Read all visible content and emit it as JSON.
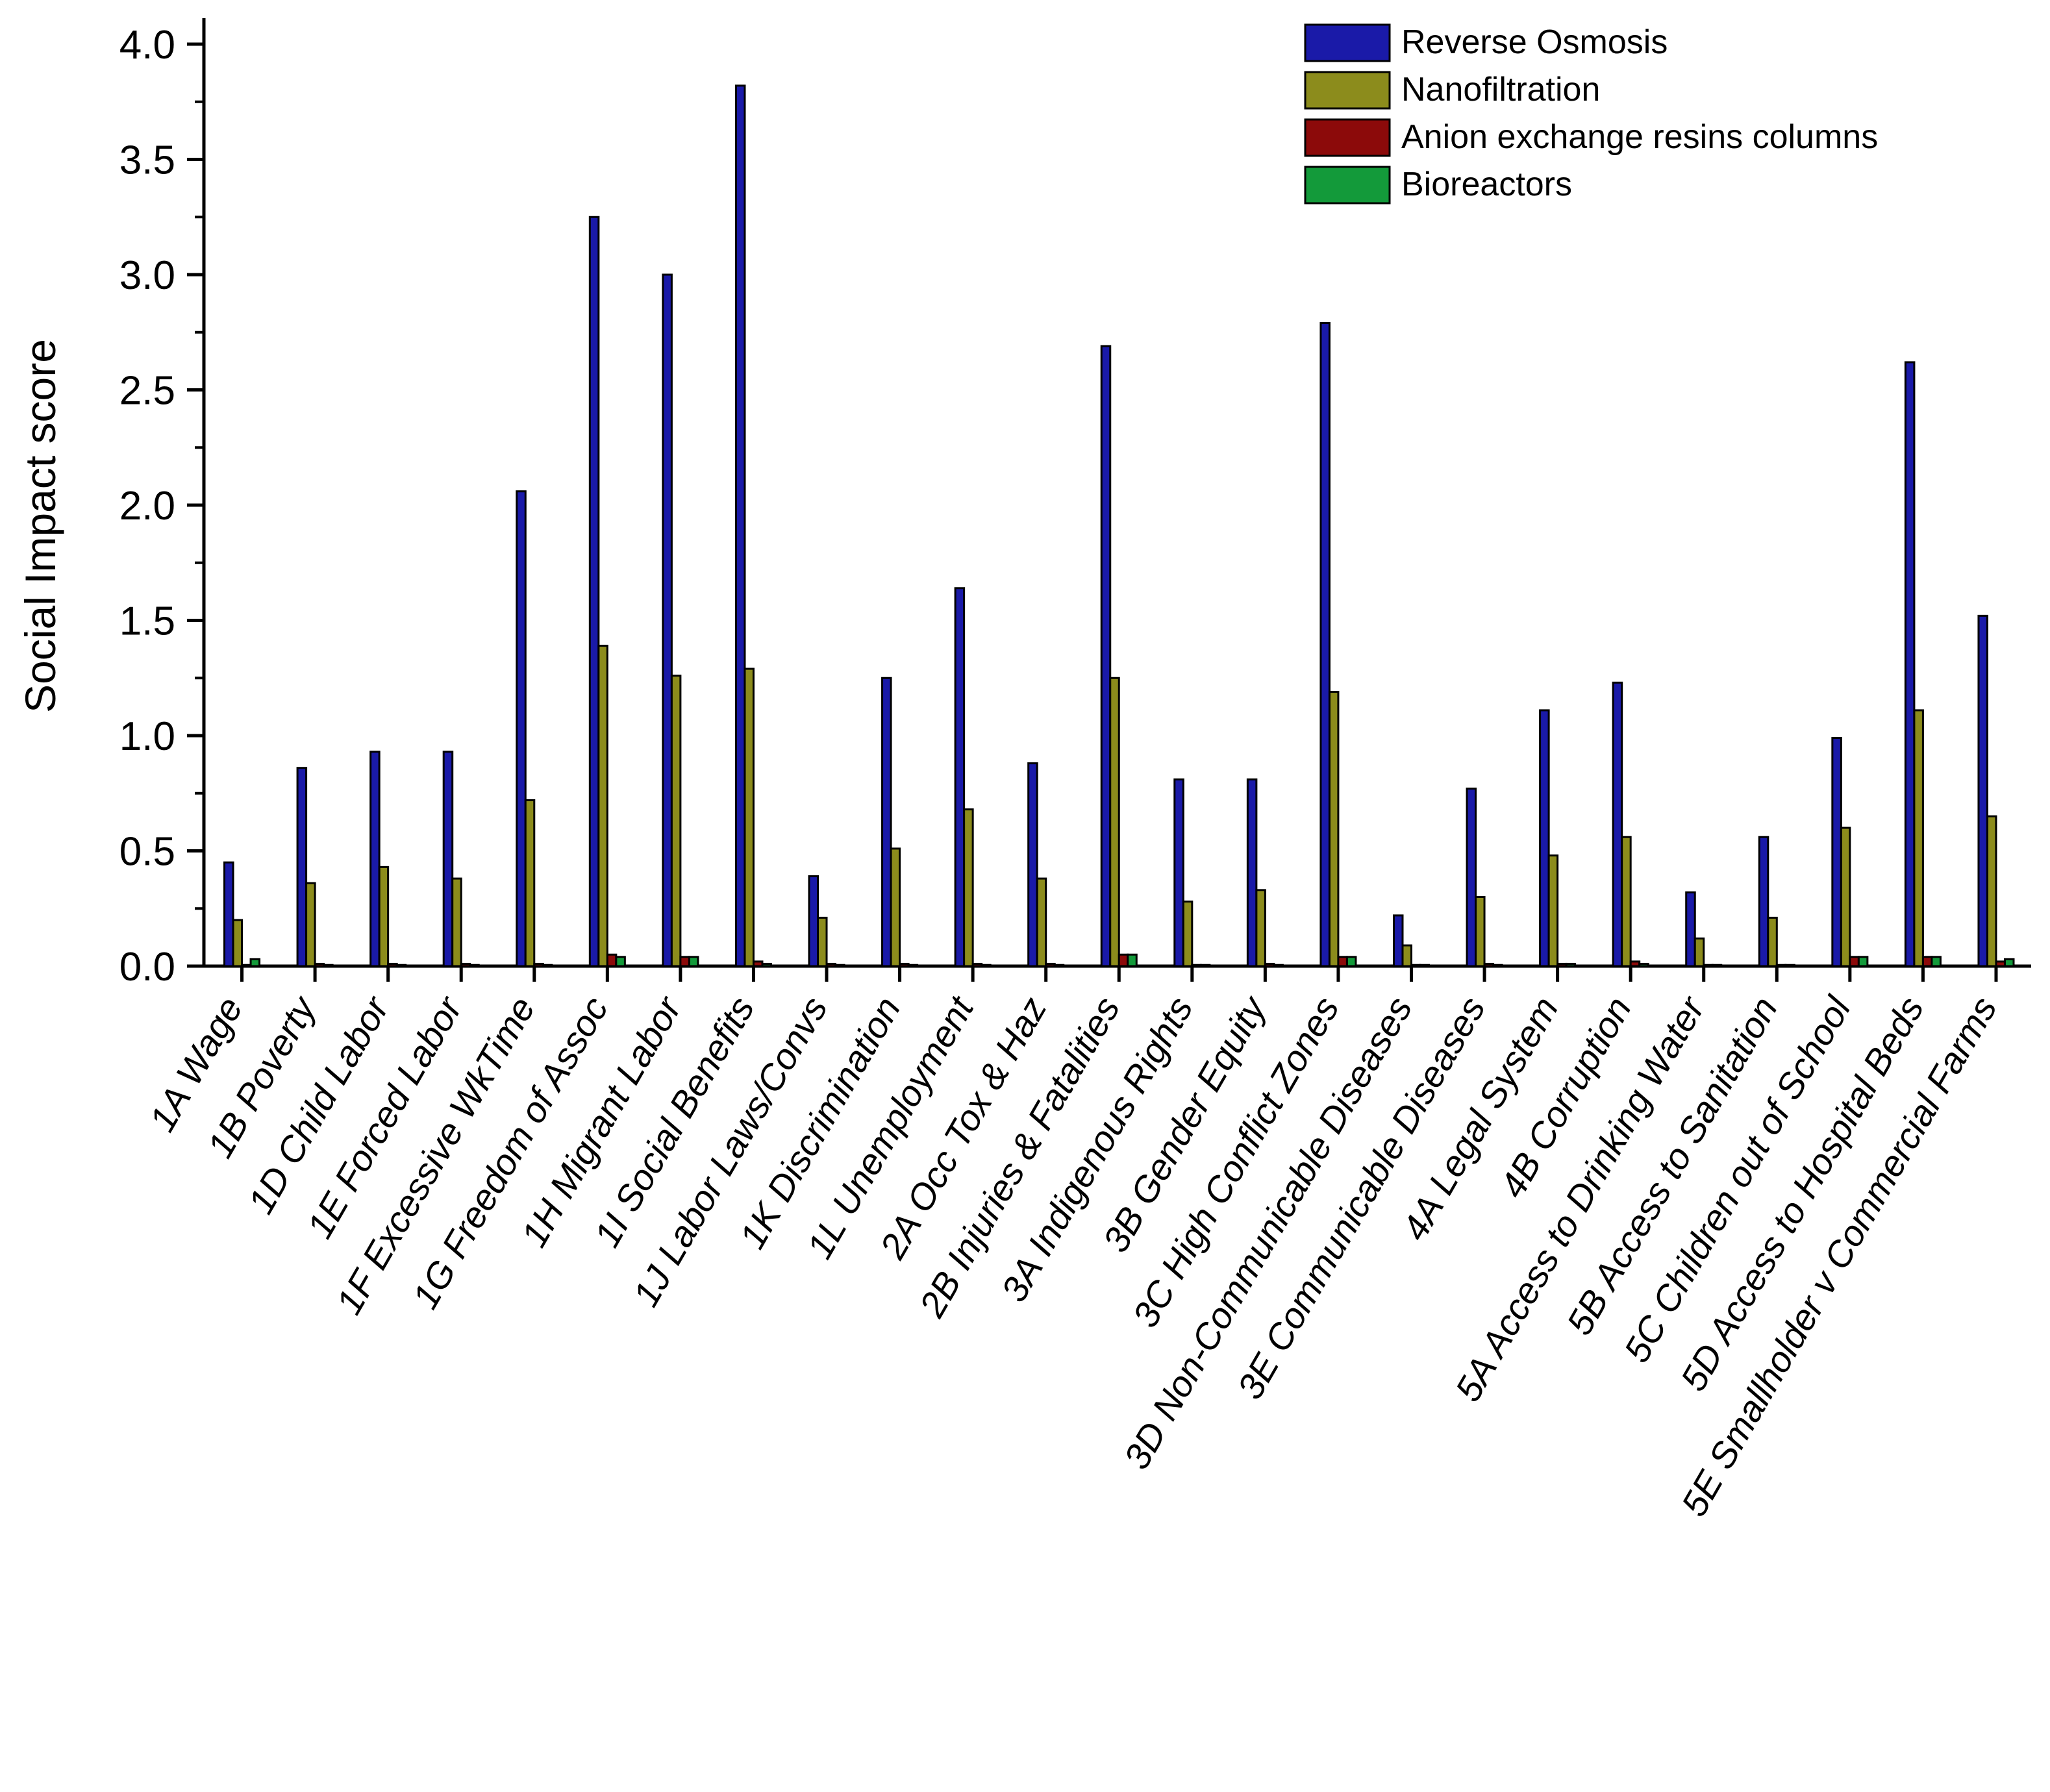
{
  "chart_data": {
    "type": "bar",
    "title": "",
    "xlabel": "",
    "ylabel": "Social Impact score",
    "ylim": [
      0,
      4.0
    ],
    "yticks": [
      "0.0",
      "0.5",
      "1.0",
      "1.5",
      "2.0",
      "2.5",
      "3.0",
      "3.5",
      "4.0"
    ],
    "legend_position": "top-right",
    "categories": [
      "1A Wage",
      "1B Poverty",
      "1D Child Labor",
      "1E Forced Labor",
      "1F Excessive WkTime",
      "1G Freedom of Assoc",
      "1H Migrant Labor",
      "1I Social Benefits",
      "1J Labor Laws/Convs",
      "1K Discrimination",
      "1L Unemployment",
      "2A Occ Tox & Haz",
      "2B Injuries & Fatalities",
      "3A Indigenous Rights",
      "3B Gender Equity",
      "3C High Conflict Zones",
      "3D Non-Communicable Diseases",
      "3E Communicable Diseases",
      "4A Legal System",
      "4B Corruption",
      "5A Access to Drinking Water",
      "5B Access to Sanitation",
      "5C Children out of School",
      "5D Access to Hospital Beds",
      "5E Smallholder v Commercial Farms"
    ],
    "series": [
      {
        "name": "Reverse Osmosis",
        "color": "#1a1aa8",
        "values": [
          0.45,
          0.86,
          0.93,
          0.93,
          2.06,
          3.25,
          3.0,
          3.82,
          0.39,
          1.25,
          1.64,
          0.88,
          2.69,
          0.81,
          0.81,
          2.79,
          0.22,
          0.77,
          1.11,
          1.23,
          0.32,
          0.56,
          0.99,
          2.62,
          1.52
        ]
      },
      {
        "name": "Nanofiltration",
        "color": "#8c8c1c",
        "values": [
          0.2,
          0.36,
          0.43,
          0.38,
          0.72,
          1.39,
          1.26,
          1.29,
          0.21,
          0.51,
          0.68,
          0.38,
          1.25,
          0.28,
          0.33,
          1.19,
          0.09,
          0.3,
          0.48,
          0.56,
          0.12,
          0.21,
          0.6,
          1.11,
          0.65
        ]
      },
      {
        "name": "Anion exchange resins columns",
        "color": "#8c0a0a",
        "values": [
          0.005,
          0.01,
          0.01,
          0.01,
          0.01,
          0.05,
          0.04,
          0.02,
          0.01,
          0.01,
          0.01,
          0.01,
          0.05,
          0.005,
          0.01,
          0.04,
          0.005,
          0.01,
          0.01,
          0.02,
          0.005,
          0.005,
          0.04,
          0.04,
          0.02
        ]
      },
      {
        "name": "Bioreactors",
        "color": "#139a3a",
        "values": [
          0.03,
          0.005,
          0.005,
          0.005,
          0.005,
          0.04,
          0.04,
          0.01,
          0.005,
          0.005,
          0.005,
          0.005,
          0.05,
          0.005,
          0.005,
          0.04,
          0.005,
          0.005,
          0.01,
          0.01,
          0.005,
          0.005,
          0.04,
          0.04,
          0.03
        ]
      }
    ]
  }
}
